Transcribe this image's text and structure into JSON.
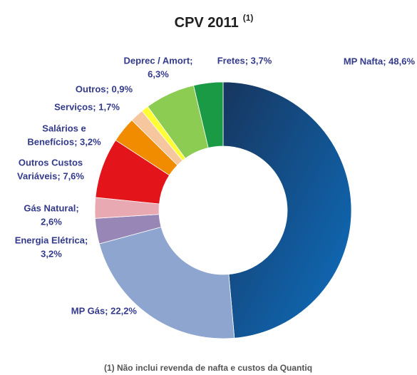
{
  "chart_data": {
    "type": "donut",
    "title": "CPV 2011",
    "title_superscript": "(1)",
    "values": [
      48.6,
      22.2,
      3.2,
      2.6,
      7.6,
      3.2,
      1.7,
      0.9,
      6.3,
      3.7
    ],
    "value_labels": [
      [
        "MP Nafta; 48,6%"
      ],
      [
        "MP Gás; 22,2%"
      ],
      [
        "Energia Elétrica;",
        "3,2%"
      ],
      [
        "Gás Natural;",
        "2,6%"
      ],
      [
        "Outros Custos",
        "Variáveis; 7,6%"
      ],
      [
        "Salários e",
        "Benefícios; 3,2%"
      ],
      [
        "Serviços; 1,7%"
      ],
      [
        "Outros; 0,9%"
      ],
      [
        "Deprec / Amort;",
        "6,3%"
      ],
      [
        "Fretes; 3,7%"
      ]
    ],
    "colors": [
      "#1d5ca6",
      "#8ea6cf",
      "#9886b6",
      "#e9a9b2",
      "#e3151b",
      "#f18c00",
      "#f6c79e",
      "#ffff33",
      "#8dcc52",
      "#1b9a46"
    ],
    "footnote": "(1) Não inclui revenda de nafta e custos da Quantiq"
  }
}
